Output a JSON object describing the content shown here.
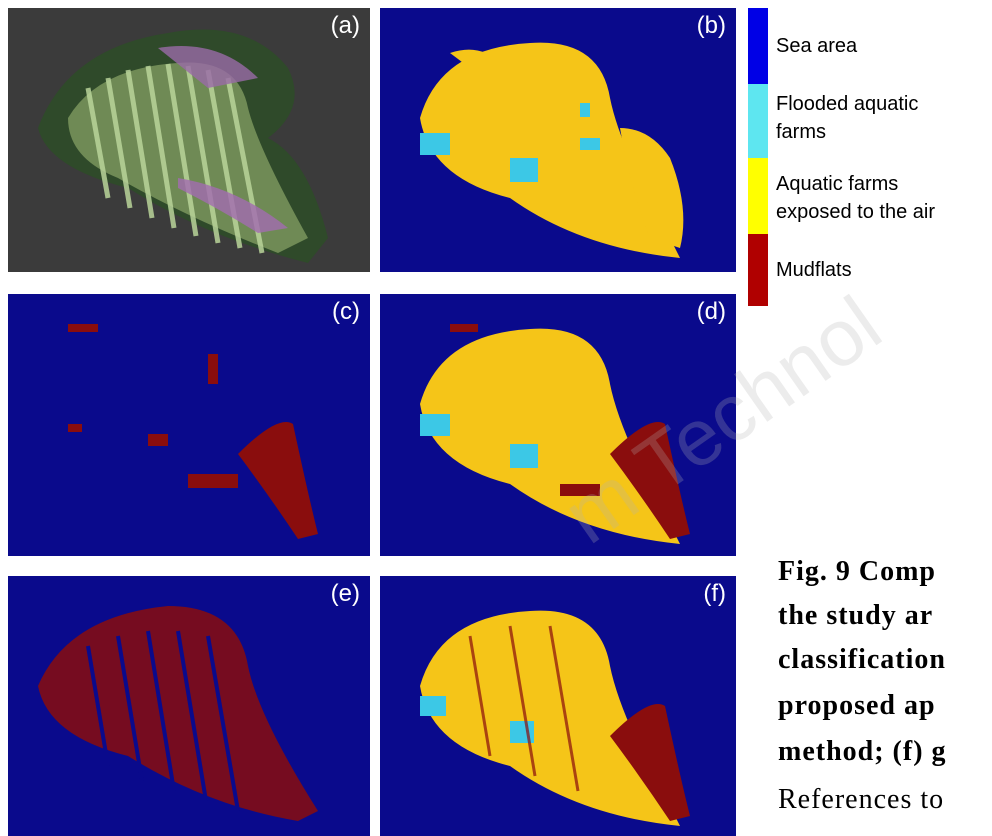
{
  "panels": [
    {
      "id": "a",
      "label": "(a)"
    },
    {
      "id": "b",
      "label": "(b)"
    },
    {
      "id": "c",
      "label": "(c)"
    },
    {
      "id": "d",
      "label": "(d)"
    },
    {
      "id": "e",
      "label": "(e)"
    },
    {
      "id": "f",
      "label": "(f)"
    }
  ],
  "legend": [
    {
      "label": "Sea area",
      "color": "#0000e6"
    },
    {
      "label": "Flooded aquatic farms",
      "color": "#5ee6f0"
    },
    {
      "label": "Aquatic farms exposed to the air",
      "color": "#ffff00"
    },
    {
      "label": "Mudflats",
      "color": "#b00000"
    }
  ],
  "legend_lines": {
    "flooded_1": "Flooded aquatic",
    "flooded_2": "farms",
    "exposed_1": "Aquatic farms",
    "exposed_2": "exposed to the air"
  },
  "caption": {
    "line1": "Fig. 9  Comp",
    "line2": "the study ar",
    "line3": "classification",
    "line4": "proposed  ap",
    "line5": "method; (f) g",
    "line6": "References to"
  },
  "watermark": "m Technol",
  "colors": {
    "sea": "#0a0a8c",
    "farm_exposed": "#f5c518",
    "farm_flooded": "#3cc8e6",
    "mudflat": "#8a0d0d"
  }
}
